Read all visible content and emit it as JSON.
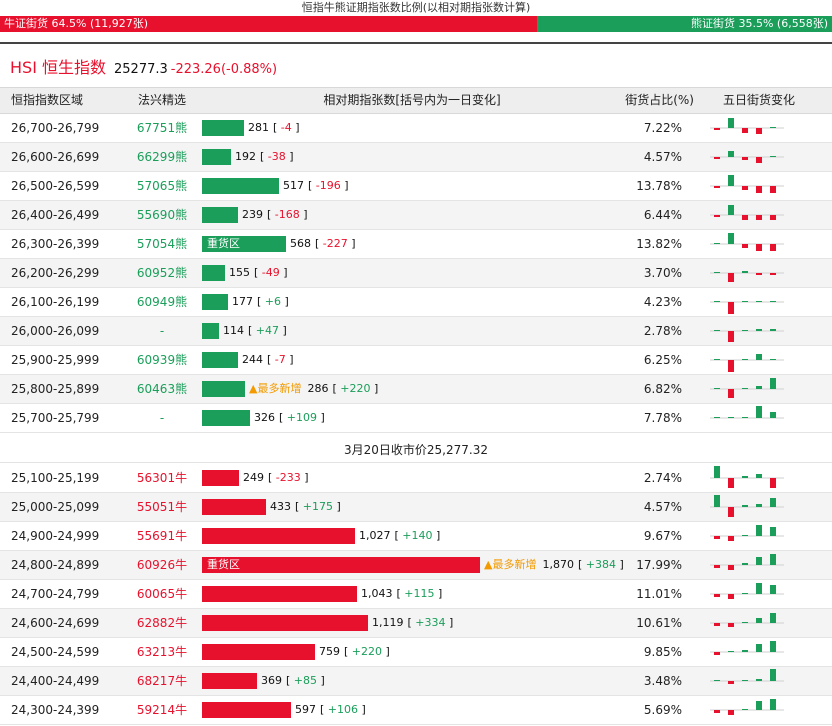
{
  "caption": "恒指牛熊证期指张数比例(以相对期指张数计算)",
  "ratio": {
    "bull_label": "牛证街货",
    "bull_pct": "64.5% (11,927张)",
    "bull_fraction": 0.645,
    "bear_label": "熊证街货",
    "bear_pct": "35.5% (6,558张)",
    "colors": {
      "bull": "#e8112d",
      "bear": "#1a9e5a"
    }
  },
  "index": {
    "name": "HSI 恒生指数",
    "price": "25277.3",
    "change": "-223.26(-0.88%)"
  },
  "headers": {
    "range": "恒指指数区域",
    "code": "法兴精选",
    "contracts": "相对期指张数[括号内为一日变化]",
    "share": "街货占比(%)",
    "five_day": "五日街货变化"
  },
  "scale_max": 1870,
  "bear_rows": [
    {
      "range": "26,700-26,799",
      "code": "67751熊",
      "value": 281,
      "value_text": "281",
      "delta": "-4",
      "share": "7.22%",
      "spark": [
        -2,
        10,
        -5,
        -6,
        1
      ]
    },
    {
      "range": "26,600-26,699",
      "code": "66299熊",
      "value": 192,
      "value_text": "192",
      "delta": "-38",
      "share": "4.57%",
      "spark": [
        -2,
        6,
        -3,
        -6,
        1
      ]
    },
    {
      "range": "26,500-26,599",
      "code": "57065熊",
      "value": 517,
      "value_text": "517",
      "delta": "-196",
      "share": "13.78%",
      "spark": [
        -2,
        11,
        -4,
        -7,
        -7
      ]
    },
    {
      "range": "26,400-26,499",
      "code": "55690熊",
      "value": 239,
      "value_text": "239",
      "delta": "-168",
      "share": "6.44%",
      "spark": [
        -2,
        10,
        -5,
        -5,
        -5
      ]
    },
    {
      "range": "26,300-26,399",
      "code": "57054熊",
      "label": "重货区",
      "value": 568,
      "value_text": "568",
      "delta": "-227",
      "share": "13.82%",
      "spark": [
        0,
        11,
        -4,
        -7,
        -7
      ]
    },
    {
      "range": "26,200-26,299",
      "code": "60952熊",
      "value": 155,
      "value_text": "155",
      "delta": "-49",
      "share": "3.70%",
      "spark": [
        0,
        -9,
        2,
        -2,
        -2
      ]
    },
    {
      "range": "26,100-26,199",
      "code": "60949熊",
      "value": 177,
      "value_text": "177",
      "delta": "+6",
      "share": "4.23%",
      "spark": [
        0,
        -12,
        1,
        1,
        1
      ]
    },
    {
      "range": "26,000-26,099",
      "code": "-",
      "value": 114,
      "value_text": "114",
      "delta": "+47",
      "share": "2.78%",
      "spark": [
        0,
        -11,
        0,
        2,
        2
      ]
    },
    {
      "range": "25,900-25,999",
      "code": "60939熊",
      "value": 244,
      "value_text": "244",
      "delta": "-7",
      "share": "6.25%",
      "spark": [
        0,
        -12,
        0,
        6,
        1
      ]
    },
    {
      "range": "25,800-25,899",
      "code": "60463熊",
      "most": "▲最多新增",
      "value": 286,
      "value_text": "286",
      "delta": "+220",
      "share": "6.82%",
      "spark": [
        0,
        -9,
        0,
        3,
        11
      ]
    },
    {
      "range": "25,700-25,799",
      "code": "-",
      "value": 326,
      "value_text": "326",
      "delta": "+109",
      "share": "7.78%",
      "spark": [
        0,
        0,
        0,
        12,
        6
      ]
    }
  ],
  "close_label": "3月20日收市价25,277.32",
  "bull_rows": [
    {
      "range": "25,100-25,199",
      "code": "56301牛",
      "value": 249,
      "value_text": "249",
      "delta": "-233",
      "share": "2.74%",
      "spark": [
        12,
        -10,
        2,
        4,
        -10
      ]
    },
    {
      "range": "25,000-25,099",
      "code": "55051牛",
      "value": 433,
      "value_text": "433",
      "delta": "+175",
      "share": "4.57%",
      "spark": [
        12,
        -10,
        2,
        3,
        9
      ]
    },
    {
      "range": "24,900-24,999",
      "code": "55691牛",
      "value": 1027,
      "value_text": "1,027",
      "delta": "+140",
      "share": "9.67%",
      "spark": [
        -3,
        -5,
        0,
        11,
        9
      ]
    },
    {
      "range": "24,800-24,899",
      "code": "60926牛",
      "label": "重货区",
      "most": "▲最多新增",
      "value": 1870,
      "value_text": "1,870",
      "delta": "+384",
      "share": "17.99%",
      "spark": [
        -3,
        -5,
        2,
        8,
        11
      ]
    },
    {
      "range": "24,700-24,799",
      "code": "60065牛",
      "value": 1043,
      "value_text": "1,043",
      "delta": "+115",
      "share": "11.01%",
      "spark": [
        -3,
        -5,
        0,
        11,
        9
      ]
    },
    {
      "range": "24,600-24,699",
      "code": "62882牛",
      "value": 1119,
      "value_text": "1,119",
      "delta": "+334",
      "share": "10.61%",
      "spark": [
        -3,
        -4,
        0,
        5,
        10
      ]
    },
    {
      "range": "24,500-24,599",
      "code": "63213牛",
      "value": 759,
      "value_text": "759",
      "delta": "+220",
      "share": "9.85%",
      "spark": [
        -3,
        0,
        2,
        8,
        11
      ]
    },
    {
      "range": "24,400-24,499",
      "code": "68217牛",
      "value": 369,
      "value_text": "369",
      "delta": "+85",
      "share": "3.48%",
      "spark": [
        0,
        -3,
        0,
        2,
        12
      ]
    },
    {
      "range": "24,300-24,399",
      "code": "59214牛",
      "value": 597,
      "value_text": "597",
      "delta": "+106",
      "share": "5.69%",
      "spark": [
        -3,
        -5,
        0,
        9,
        11
      ]
    }
  ]
}
